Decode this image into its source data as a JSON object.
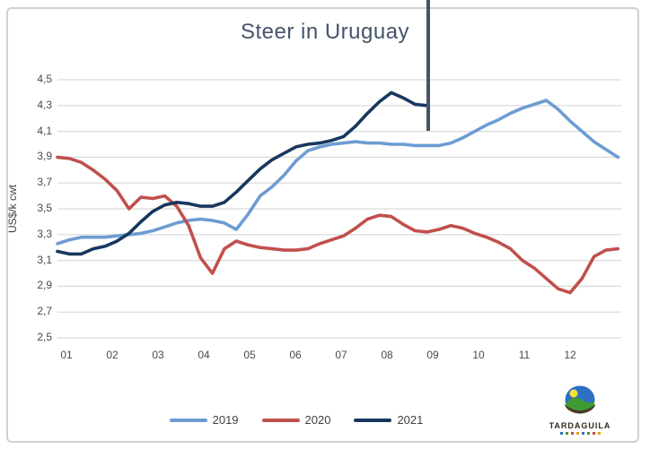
{
  "title": "Steer in Uruguay",
  "y_axis": {
    "title": "US$/k cwt",
    "ticks": [
      "4,5",
      "4,3",
      "4,1",
      "3,9",
      "3,7",
      "3,5",
      "3,3",
      "3,1",
      "2,9",
      "2,7",
      "2,5"
    ],
    "tick_values": [
      4.5,
      4.3,
      4.1,
      3.9,
      3.7,
      3.5,
      3.3,
      3.1,
      2.9,
      2.7,
      2.5
    ]
  },
  "x_axis": {
    "ticks": [
      "01",
      "02",
      "03",
      "04",
      "05",
      "06",
      "07",
      "08",
      "09",
      "10",
      "11",
      "12"
    ]
  },
  "colors": {
    "grid": "#D9D9D9",
    "marker_line": "#44546A",
    "title_text": "#44546A",
    "tick_text": "#4a4a4a",
    "frame_border": "#ccd2d9"
  },
  "logo": {
    "brand": "TARDAGUILA"
  },
  "chart_data": {
    "type": "line",
    "title": "Steer in Uruguay",
    "xlabel": "",
    "ylabel": "US$/k cwt",
    "ylim": [
      2.5,
      4.5
    ],
    "grid": true,
    "legend_position": "bottom",
    "x_unit": "weekly points, 4 per month, months 01-12",
    "annotation": "dark vertical marker line from top of image down to ~4.1 level, located just before month 09 (current-date marker); 2021 series ends there",
    "categories_months": [
      "01",
      "02",
      "03",
      "04",
      "05",
      "06",
      "07",
      "08",
      "09",
      "10",
      "11",
      "12"
    ],
    "series": [
      {
        "name": "2019",
        "color": "#6D9CD3",
        "values": [
          3.23,
          3.26,
          3.28,
          3.28,
          3.28,
          3.29,
          3.3,
          3.31,
          3.33,
          3.36,
          3.39,
          3.41,
          3.42,
          3.41,
          3.39,
          3.34,
          3.46,
          3.6,
          3.67,
          3.76,
          3.87,
          3.95,
          3.98,
          4.0,
          4.01,
          4.02,
          4.01,
          4.01,
          4.0,
          4.0,
          3.99,
          3.99,
          3.99,
          4.01,
          4.05,
          4.1,
          4.15,
          4.19,
          4.24,
          4.28,
          4.31,
          4.34,
          4.27,
          4.18,
          4.1,
          4.02,
          3.96,
          3.9
        ]
      },
      {
        "name": "2020",
        "color": "#C0504D",
        "values": [
          3.9,
          3.89,
          3.86,
          3.8,
          3.73,
          3.64,
          3.5,
          3.59,
          3.58,
          3.6,
          3.52,
          3.37,
          3.12,
          3.0,
          3.19,
          3.25,
          3.22,
          3.2,
          3.19,
          3.18,
          3.18,
          3.19,
          3.23,
          3.26,
          3.29,
          3.35,
          3.42,
          3.45,
          3.44,
          3.38,
          3.33,
          3.32,
          3.34,
          3.37,
          3.35,
          3.31,
          3.28,
          3.24,
          3.19,
          3.1,
          3.04,
          2.96,
          2.88,
          2.85,
          2.96,
          3.13,
          3.18,
          3.19
        ]
      },
      {
        "name": "2021",
        "color": "#17375E",
        "values": [
          3.17,
          3.15,
          3.15,
          3.19,
          3.21,
          3.25,
          3.31,
          3.4,
          3.48,
          3.53,
          3.55,
          3.54,
          3.52,
          3.52,
          3.55,
          3.63,
          3.72,
          3.81,
          3.88,
          3.93,
          3.98,
          4.0,
          4.01,
          4.03,
          4.06,
          4.14,
          4.24,
          4.33,
          4.4,
          4.36,
          4.31,
          4.3
        ]
      }
    ]
  }
}
